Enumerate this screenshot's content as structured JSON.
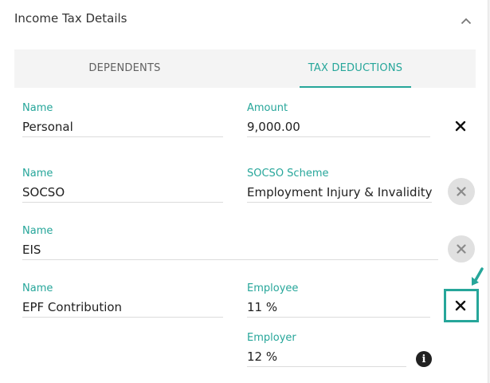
{
  "header": {
    "title": "Income Tax Details",
    "collapse_icon": "chevron-up-icon"
  },
  "tabs": [
    {
      "label": "DEPENDENTS",
      "active": false
    },
    {
      "label": "TAX DEDUCTIONS",
      "active": true
    }
  ],
  "deductions": [
    {
      "name_label": "Name",
      "name_value": "Personal",
      "field_label": "Amount",
      "field_value": "9,000.00",
      "remove_icon": "close-icon"
    },
    {
      "name_label": "Name",
      "name_value": "SOCSO",
      "field_label": "SOCSO Scheme",
      "field_value": "Employment Injury & Invalidity ...",
      "remove_icon": "close-icon"
    },
    {
      "name_label": "Name",
      "name_value": "EIS",
      "remove_icon": "close-icon"
    },
    {
      "name_label": "Name",
      "name_value": "EPF Contribution",
      "employee_label": "Employee",
      "employee_value": "11 %",
      "employer_label": "Employer",
      "employer_value": "12 %",
      "remove_icon": "close-icon",
      "info_icon": "info-icon"
    }
  ],
  "colors": {
    "accent": "#26a69a",
    "text": "#212121",
    "muted_button": "#e0e0e0"
  }
}
